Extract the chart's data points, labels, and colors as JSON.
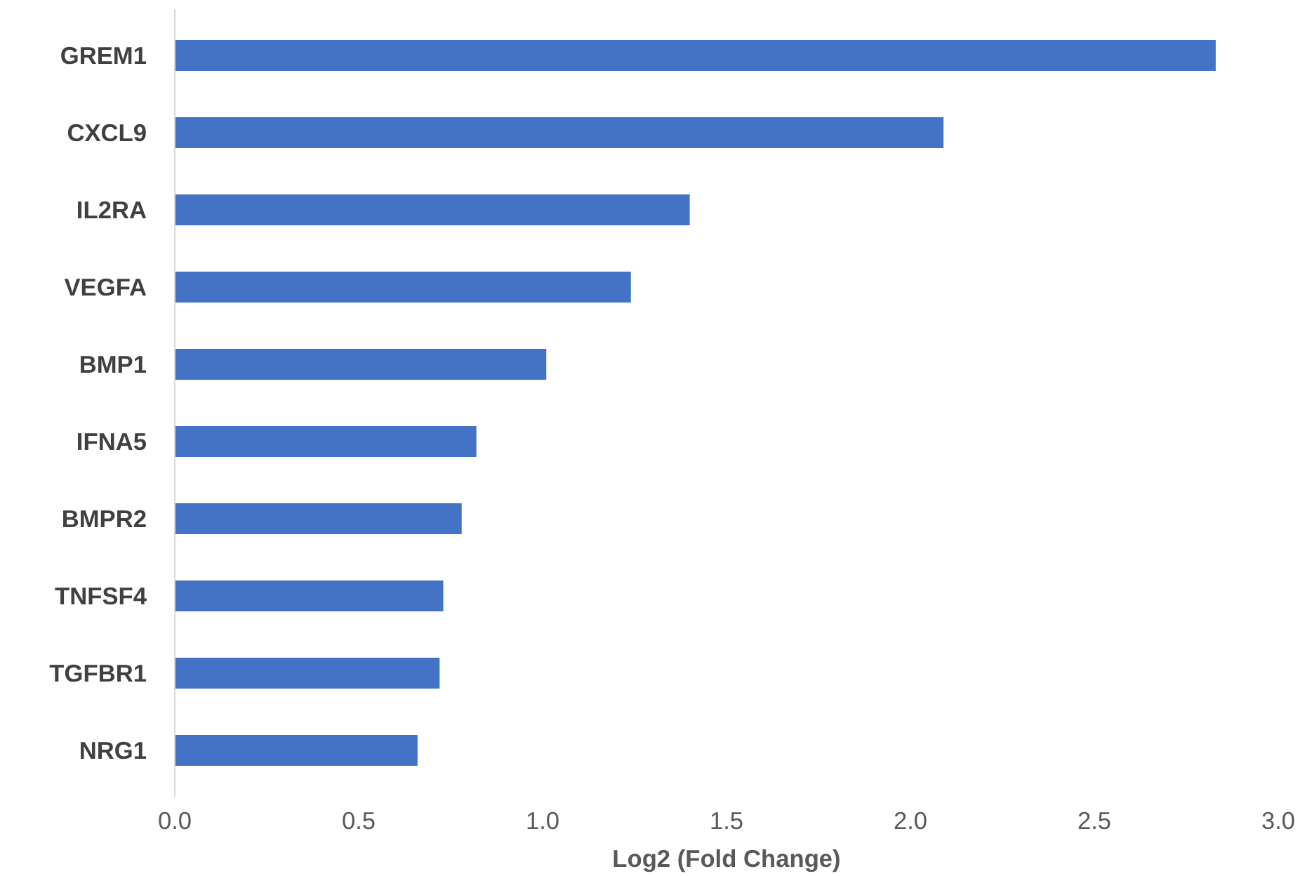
{
  "chart_data": {
    "type": "bar",
    "orientation": "horizontal",
    "xlabel": "Log2 (Fold Change)",
    "categories": [
      "GREM1",
      "CXCL9",
      "IL2RA",
      "VEGFA",
      "BMP1",
      "IFNA5",
      "BMPR2",
      "TNFSF4",
      "TGFBR1",
      "NRG1"
    ],
    "values": [
      2.83,
      2.09,
      1.4,
      1.24,
      1.01,
      0.82,
      0.78,
      0.73,
      0.72,
      0.66
    ],
    "color": "#4472c4",
    "xlim": [
      0,
      3
    ],
    "xticks": [
      {
        "value": 0,
        "label": "0.0"
      },
      {
        "value": 0.5,
        "label": "0.5"
      },
      {
        "value": 1,
        "label": "1.0"
      },
      {
        "value": 1.5,
        "label": "1.5"
      },
      {
        "value": 2,
        "label": "2.0"
      },
      {
        "value": 2.5,
        "label": "2.5"
      },
      {
        "value": 3,
        "label": "3.0"
      }
    ],
    "grid": false
  }
}
